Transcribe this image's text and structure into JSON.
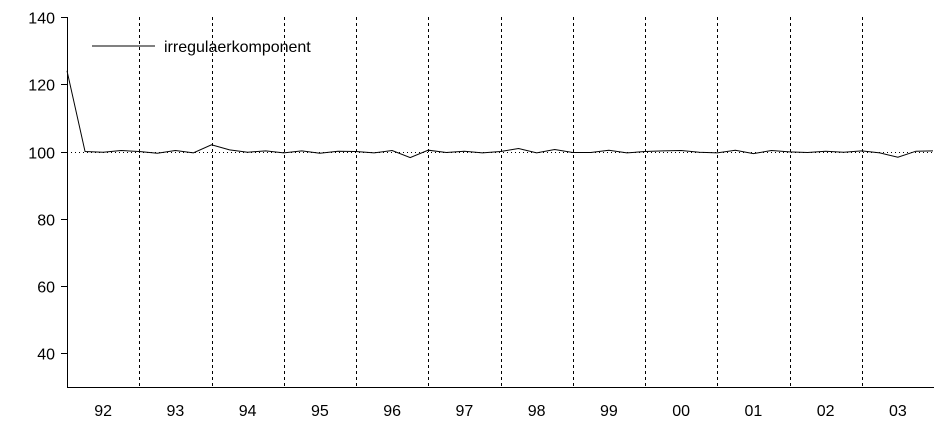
{
  "chart_data": {
    "type": "line",
    "title": "",
    "xlabel": "",
    "ylabel": "",
    "ylim": [
      30,
      140
    ],
    "y_ticks": [
      "40",
      "60",
      "80",
      "100",
      "120",
      "140"
    ],
    "x_year_labels": [
      "92",
      "93",
      "94",
      "95",
      "96",
      "97",
      "98",
      "99",
      "00",
      "01",
      "02",
      "03"
    ],
    "x_start_year": 1992,
    "x_end_year": 2004,
    "periods_per_year": 4,
    "reference_line": 100,
    "grid": "vertical dashed lines at year boundaries",
    "legend": {
      "placement": "top-left",
      "entries": [
        "irregulaerkomponent"
      ]
    },
    "series": [
      {
        "name": "irregulaerkomponent",
        "color": "#000000",
        "values": [
          124,
          100,
          99.8,
          100.3,
          100,
          99.5,
          100.3,
          99.6,
          102,
          100.5,
          99.8,
          100.2,
          99.6,
          100.2,
          99.5,
          100.1,
          100,
          99.6,
          100.3,
          98.2,
          100.4,
          99.7,
          100.1,
          99.6,
          100,
          100.9,
          99.6,
          100.6,
          99.7,
          99.7,
          100.4,
          99.6,
          100,
          100.2,
          100.3,
          99.8,
          99.6,
          100.4,
          99.4,
          100.3,
          99.9,
          99.7,
          100.1,
          99.8,
          100.2,
          99.6,
          98.3,
          100.1,
          100.2
        ]
      }
    ]
  }
}
